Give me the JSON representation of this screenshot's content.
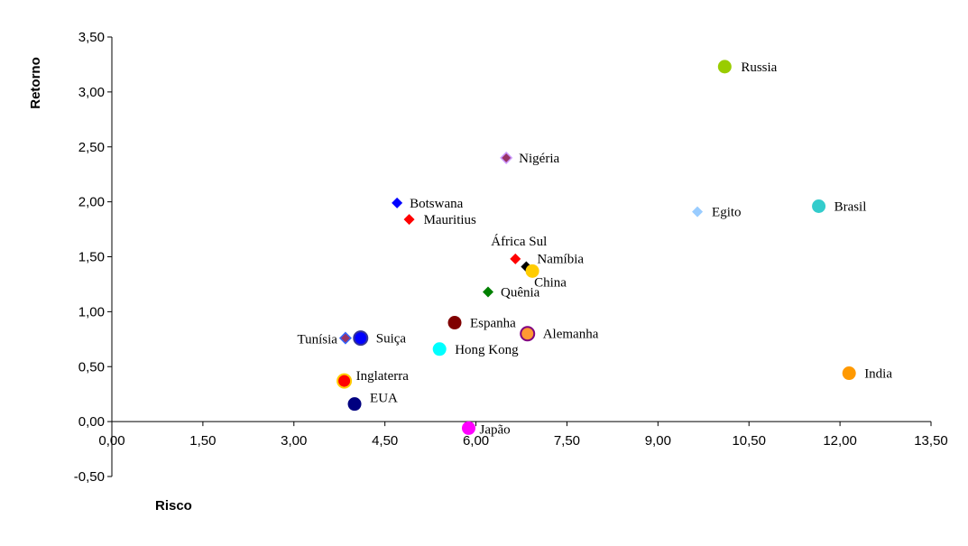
{
  "chart_data": {
    "type": "scatter",
    "title": "",
    "xlabel": "Risco",
    "ylabel": "Retorno",
    "xlim": [
      0,
      13.5
    ],
    "ylim": [
      -0.5,
      3.5
    ],
    "x_ticks": [
      "0,00",
      "1,50",
      "3,00",
      "4,50",
      "6,00",
      "7,50",
      "9,00",
      "10,50",
      "12,00",
      "13,50"
    ],
    "y_ticks": [
      "-0,50",
      "0,00",
      "0,50",
      "1,00",
      "1,50",
      "2,00",
      "2,50",
      "3,00",
      "3,50"
    ],
    "grid": false,
    "points": [
      {
        "label": "Russia",
        "x": 10.1,
        "y": 3.23,
        "marker": "circle",
        "color": "#99CC00"
      },
      {
        "label": "Nigéria",
        "x": 6.5,
        "y": 2.4,
        "marker": "diamond",
        "color": "#993366",
        "border": "#CC99FF"
      },
      {
        "label": "Botswana",
        "x": 4.7,
        "y": 1.99,
        "marker": "diamond",
        "color": "#0000FF"
      },
      {
        "label": "Mauritius",
        "x": 4.9,
        "y": 1.84,
        "marker": "diamond",
        "color": "#FF0000"
      },
      {
        "label": "Egito",
        "x": 9.65,
        "y": 1.91,
        "marker": "diamond",
        "color": "#99CCFF"
      },
      {
        "label": "Brasil",
        "x": 11.65,
        "y": 1.96,
        "marker": "circle",
        "color": "#33CCCC"
      },
      {
        "label": "África Sul",
        "x": 6.65,
        "y": 1.48,
        "marker": "diamond",
        "color": "#FF0000"
      },
      {
        "label": "Namíbia",
        "x": 6.83,
        "y": 1.41,
        "marker": "diamond",
        "color": "#000000"
      },
      {
        "label": "China",
        "x": 6.93,
        "y": 1.37,
        "marker": "circle",
        "color": "#FFCC00"
      },
      {
        "label": "Quênia",
        "x": 6.2,
        "y": 1.18,
        "marker": "diamond",
        "color": "#008000"
      },
      {
        "label": "Espanha",
        "x": 5.65,
        "y": 0.9,
        "marker": "circle",
        "color": "#800000"
      },
      {
        "label": "Alemanha",
        "x": 6.85,
        "y": 0.8,
        "marker": "circle",
        "color": "#FF9933",
        "border": "#800080"
      },
      {
        "label": "Tunísia",
        "x": 3.85,
        "y": 0.76,
        "marker": "diamond",
        "color": "#993366",
        "border": "#3366FF"
      },
      {
        "label": "Suiça",
        "x": 4.1,
        "y": 0.76,
        "marker": "circle",
        "color": "#0000FF",
        "border": "#333399"
      },
      {
        "label": "Hong Kong",
        "x": 5.4,
        "y": 0.66,
        "marker": "circle",
        "color": "#00FFFF"
      },
      {
        "label": "India",
        "x": 12.15,
        "y": 0.44,
        "marker": "circle",
        "color": "#FF9900"
      },
      {
        "label": "Inglaterra",
        "x": 3.83,
        "y": 0.37,
        "marker": "circle",
        "color": "#FF0000",
        "border": "#FFCC00"
      },
      {
        "label": "EUA",
        "x": 4.0,
        "y": 0.16,
        "marker": "circle",
        "color": "#000080"
      },
      {
        "label": "Japão",
        "x": 5.88,
        "y": -0.06,
        "marker": "circle",
        "color": "#FF00FF"
      }
    ]
  }
}
